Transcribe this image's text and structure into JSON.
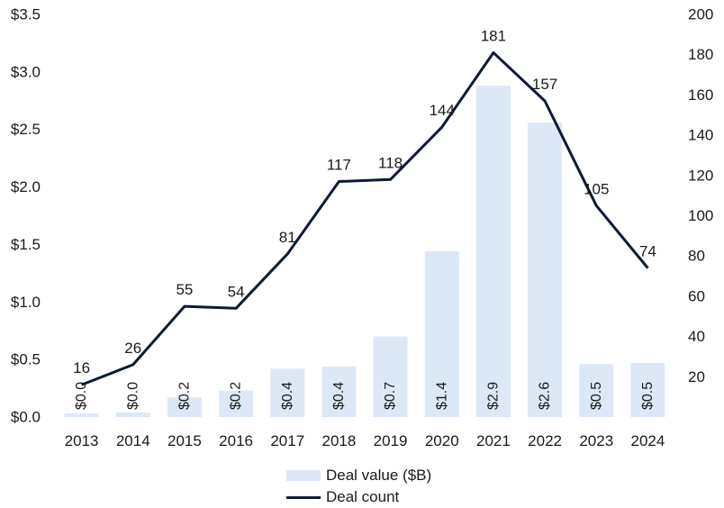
{
  "chart_data": {
    "type": "bar",
    "categories": [
      "2013",
      "2014",
      "2015",
      "2016",
      "2017",
      "2018",
      "2019",
      "2020",
      "2021",
      "2022",
      "2023",
      "2024"
    ],
    "series": [
      {
        "name": "Deal value ($B)",
        "type": "bar",
        "axis": "left",
        "color": "#dce8f6",
        "values": [
          0.03,
          0.04,
          0.17,
          0.23,
          0.42,
          0.44,
          0.7,
          1.44,
          2.88,
          2.56,
          0.46,
          0.47
        ],
        "labels": [
          "$0.0",
          "$0.0",
          "$0.2",
          "$0.2",
          "$0.4",
          "$0.4",
          "$0.7",
          "$1.4",
          "$2.9",
          "$2.6",
          "$0.5",
          "$0.5"
        ]
      },
      {
        "name": "Deal count",
        "type": "line",
        "axis": "right",
        "color": "#0d1a33",
        "values": [
          16,
          26,
          55,
          54,
          81,
          117,
          118,
          144,
          181,
          157,
          105,
          74
        ],
        "labels": [
          "16",
          "26",
          "55",
          "54",
          "81",
          "117",
          "118",
          "144",
          "181",
          "157",
          "105",
          "74"
        ]
      }
    ],
    "y_left": {
      "ylim": [
        0,
        3.5
      ],
      "ticks": [
        0,
        0.5,
        1.0,
        1.5,
        2.0,
        2.5,
        3.0,
        3.5
      ],
      "tick_labels": [
        "$0.0",
        "$0.5",
        "$1.0",
        "$1.5",
        "$2.0",
        "$2.5",
        "$3.0",
        "$3.5"
      ]
    },
    "y_right": {
      "ylim": [
        0,
        200
      ],
      "ticks": [
        20,
        40,
        60,
        80,
        100,
        120,
        140,
        160,
        180,
        200
      ],
      "tick_labels": [
        "20",
        "40",
        "60",
        "80",
        "100",
        "120",
        "140",
        "160",
        "180",
        "200"
      ]
    },
    "grid": false,
    "legend": "bottom-center"
  }
}
